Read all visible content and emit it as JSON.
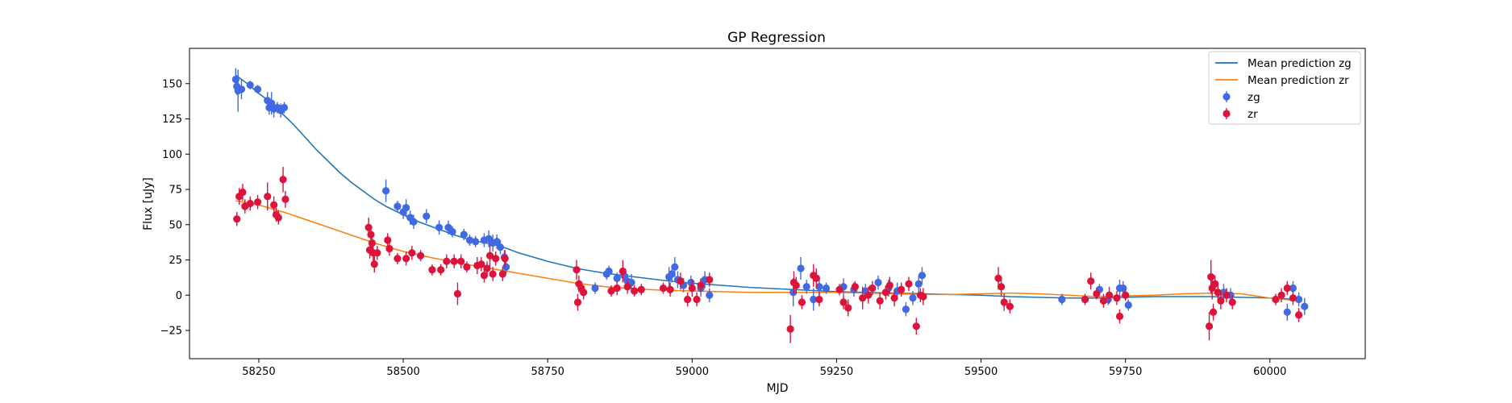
{
  "chart_data": {
    "type": "scatter",
    "title": "GP Regression",
    "xlabel": "MJD",
    "ylabel": "Flux [uJy]",
    "xlim": [
      58130,
      60165
    ],
    "ylim": [
      -45,
      175
    ],
    "xticks": [
      58250,
      58500,
      58750,
      59000,
      59250,
      59500,
      59750,
      60000
    ],
    "yticks": [
      -25,
      0,
      25,
      50,
      75,
      100,
      125,
      150
    ],
    "grid": false,
    "legend_position": "upper right",
    "legend": [
      "Mean prediction zg",
      "Mean prediction zr",
      "zg",
      "zr"
    ],
    "colors": {
      "zg_line": "#1f77b4",
      "zr_line": "#ff7f0e",
      "zg_points": "#4169e1",
      "zr_points": "#dc143c"
    },
    "lines": [
      {
        "name": "Mean prediction zg",
        "band": "zg",
        "x": [
          58210,
          58230,
          58250,
          58270,
          58290,
          58310,
          58330,
          58350,
          58370,
          58390,
          58410,
          58430,
          58450,
          58470,
          58490,
          58510,
          58530,
          58550,
          58570,
          58590,
          58610,
          58630,
          58650,
          58670,
          58700,
          58750,
          58800,
          58850,
          58900,
          58950,
          59000,
          59050,
          59100,
          59150,
          59200,
          59250,
          59300,
          59350,
          59400,
          59450,
          59500,
          59550,
          59600,
          59650,
          59700,
          59750,
          59800,
          59850,
          59900,
          59950,
          60000,
          60050
        ],
        "y": [
          156,
          150,
          143,
          137,
          129,
          121,
          112,
          103,
          95,
          87,
          80,
          74,
          68,
          63,
          59,
          55,
          51.5,
          48.5,
          45.5,
          42.5,
          40,
          38,
          36.5,
          34.5,
          30,
          24,
          19,
          15.5,
          13,
          10.5,
          8.5,
          7,
          5.5,
          4.5,
          3.5,
          2.5,
          2,
          1.5,
          1,
          0.5,
          0,
          -1,
          -1.5,
          -2,
          -2,
          -1.5,
          -1,
          -1,
          -1,
          -1.5,
          -2,
          -3
        ]
      },
      {
        "name": "Mean prediction zr",
        "band": "zr",
        "x": [
          58210,
          58250,
          58300,
          58350,
          58400,
          58450,
          58500,
          58550,
          58600,
          58650,
          58700,
          58750,
          58800,
          58850,
          58900,
          58950,
          59000,
          59050,
          59100,
          59150,
          59200,
          59250,
          59300,
          59350,
          59400,
          59450,
          59500,
          59550,
          59600,
          59650,
          59700,
          59750,
          59800,
          59850,
          59900,
          59950,
          60000,
          60050
        ],
        "y": [
          67,
          64,
          58,
          51,
          44,
          37,
          31,
          26.5,
          22.5,
          19,
          15.5,
          12,
          8.5,
          6,
          4.5,
          3.5,
          3,
          2.5,
          2,
          2,
          2,
          2,
          1.5,
          1,
          0.5,
          0.5,
          1,
          1.5,
          1,
          0,
          -1,
          -0.5,
          0,
          1,
          1.5,
          1,
          -2,
          -4
        ]
      }
    ],
    "series": [
      {
        "name": "zg",
        "points": [
          [
            58210,
            153,
            8
          ],
          [
            58212,
            148,
            6
          ],
          [
            58214,
            145,
            15
          ],
          [
            58220,
            146,
            7
          ],
          [
            58235,
            149,
            3
          ],
          [
            58248,
            146,
            3
          ],
          [
            58265,
            138,
            6
          ],
          [
            58268,
            133,
            5
          ],
          [
            58272,
            136,
            8
          ],
          [
            58276,
            132,
            6
          ],
          [
            58282,
            133,
            4
          ],
          [
            58288,
            131,
            5
          ],
          [
            58294,
            133,
            4
          ],
          [
            58470,
            74,
            8
          ],
          [
            58490,
            63,
            4
          ],
          [
            58500,
            59,
            5
          ],
          [
            58505,
            62,
            6
          ],
          [
            58512,
            55,
            5
          ],
          [
            58518,
            52,
            5
          ],
          [
            58540,
            56,
            5
          ],
          [
            58562,
            48,
            5
          ],
          [
            58578,
            48,
            5
          ],
          [
            58585,
            45,
            4
          ],
          [
            58605,
            43,
            4
          ],
          [
            58615,
            39,
            4
          ],
          [
            58625,
            38,
            4
          ],
          [
            58640,
            39,
            5
          ],
          [
            58648,
            40,
            6
          ],
          [
            58655,
            37,
            6
          ],
          [
            58662,
            38,
            5
          ],
          [
            58668,
            34,
            5
          ],
          [
            58675,
            27,
            5
          ],
          [
            58678,
            20,
            5
          ],
          [
            58832,
            5,
            4
          ],
          [
            58852,
            15,
            4
          ],
          [
            58856,
            17,
            4
          ],
          [
            58870,
            12,
            4
          ],
          [
            58882,
            14,
            4
          ],
          [
            58888,
            10,
            5
          ],
          [
            58895,
            9,
            6
          ],
          [
            58960,
            13,
            7
          ],
          [
            58965,
            15,
            6
          ],
          [
            58970,
            20,
            7
          ],
          [
            58975,
            11,
            6
          ],
          [
            58985,
            7,
            5
          ],
          [
            58998,
            9,
            5
          ],
          [
            59015,
            5,
            6
          ],
          [
            59022,
            11,
            6
          ],
          [
            59030,
            0,
            5
          ],
          [
            59175,
            2,
            10
          ],
          [
            59188,
            19,
            8
          ],
          [
            59198,
            6,
            5
          ],
          [
            59210,
            -3,
            8
          ],
          [
            59220,
            6,
            6
          ],
          [
            59232,
            5,
            4
          ],
          [
            59262,
            6,
            6
          ],
          [
            59280,
            4,
            5
          ],
          [
            59300,
            3,
            5
          ],
          [
            59322,
            9,
            5
          ],
          [
            59340,
            5,
            6
          ],
          [
            59355,
            3,
            6
          ],
          [
            59370,
            -10,
            5
          ],
          [
            59382,
            -2,
            5
          ],
          [
            59392,
            8,
            6
          ],
          [
            59398,
            14,
            6
          ],
          [
            59640,
            -3,
            4
          ],
          [
            59705,
            4,
            4
          ],
          [
            59720,
            -3,
            4
          ],
          [
            59740,
            5,
            6
          ],
          [
            59746,
            5,
            5
          ],
          [
            59755,
            -7,
            4
          ],
          [
            59920,
            2,
            6
          ],
          [
            59932,
            0,
            5
          ],
          [
            60030,
            -12,
            6
          ],
          [
            60040,
            5,
            5
          ],
          [
            60050,
            -3,
            5
          ],
          [
            60060,
            -8,
            6
          ]
        ]
      },
      {
        "name": "zr",
        "points": [
          [
            58212,
            54,
            5
          ],
          [
            58216,
            70,
            6
          ],
          [
            58222,
            73,
            6
          ],
          [
            58226,
            63,
            5
          ],
          [
            58235,
            65,
            5
          ],
          [
            58248,
            66,
            5
          ],
          [
            58265,
            70,
            10
          ],
          [
            58276,
            64,
            6
          ],
          [
            58280,
            57,
            5
          ],
          [
            58284,
            55,
            5
          ],
          [
            58292,
            82,
            9
          ],
          [
            58296,
            68,
            6
          ],
          [
            58440,
            48,
            7
          ],
          [
            58442,
            32,
            6
          ],
          [
            58444,
            43,
            6
          ],
          [
            58446,
            37,
            6
          ],
          [
            58448,
            30,
            7
          ],
          [
            58450,
            22,
            6
          ],
          [
            58455,
            30,
            5
          ],
          [
            58473,
            39,
            5
          ],
          [
            58476,
            33,
            5
          ],
          [
            58490,
            26,
            4
          ],
          [
            58505,
            26,
            5
          ],
          [
            58515,
            30,
            5
          ],
          [
            58530,
            28,
            4
          ],
          [
            58550,
            18,
            4
          ],
          [
            58565,
            18,
            4
          ],
          [
            58575,
            24,
            5
          ],
          [
            58588,
            24,
            5
          ],
          [
            58594,
            1,
            8
          ],
          [
            58600,
            24,
            5
          ],
          [
            58610,
            20,
            4
          ],
          [
            58628,
            21,
            6
          ],
          [
            58635,
            22,
            5
          ],
          [
            58640,
            14,
            5
          ],
          [
            58645,
            19,
            5
          ],
          [
            58650,
            28,
            8
          ],
          [
            58655,
            15,
            5
          ],
          [
            58660,
            26,
            5
          ],
          [
            58672,
            15,
            5
          ],
          [
            58676,
            26,
            6
          ],
          [
            58800,
            18,
            7
          ],
          [
            58802,
            -5,
            6
          ],
          [
            58804,
            8,
            6
          ],
          [
            58808,
            5,
            5
          ],
          [
            58812,
            2,
            5
          ],
          [
            58860,
            3,
            4
          ],
          [
            58870,
            5,
            5
          ],
          [
            58880,
            17,
            8
          ],
          [
            58888,
            6,
            5
          ],
          [
            58900,
            3,
            4
          ],
          [
            58912,
            4,
            4
          ],
          [
            58950,
            5,
            4
          ],
          [
            58962,
            4,
            5
          ],
          [
            58980,
            10,
            6
          ],
          [
            58992,
            -3,
            5
          ],
          [
            59000,
            5,
            6
          ],
          [
            59008,
            -3,
            5
          ],
          [
            59015,
            7,
            5
          ],
          [
            59030,
            11,
            5
          ],
          [
            59170,
            -24,
            10
          ],
          [
            59176,
            9,
            8
          ],
          [
            59180,
            7,
            6
          ],
          [
            59190,
            -5,
            5
          ],
          [
            59210,
            14,
            8
          ],
          [
            59215,
            12,
            7
          ],
          [
            59220,
            -3,
            5
          ],
          [
            59255,
            4,
            4
          ],
          [
            59262,
            -5,
            5
          ],
          [
            59270,
            -9,
            6
          ],
          [
            59282,
            6,
            4
          ],
          [
            59295,
            -2,
            8
          ],
          [
            59305,
            0,
            6
          ],
          [
            59312,
            5,
            5
          ],
          [
            59325,
            -4,
            6
          ],
          [
            59335,
            2,
            5
          ],
          [
            59342,
            7,
            6
          ],
          [
            59350,
            -2,
            6
          ],
          [
            59362,
            4,
            5
          ],
          [
            59375,
            8,
            5
          ],
          [
            59388,
            -22,
            6
          ],
          [
            59395,
            0,
            5
          ],
          [
            59400,
            -1,
            6
          ],
          [
            59530,
            12,
            8
          ],
          [
            59535,
            6,
            7
          ],
          [
            59540,
            -5,
            6
          ],
          [
            59550,
            -8,
            5
          ],
          [
            59680,
            -3,
            4
          ],
          [
            59690,
            10,
            6
          ],
          [
            59700,
            1,
            4
          ],
          [
            59712,
            -4,
            5
          ],
          [
            59722,
            0,
            6
          ],
          [
            59735,
            -2,
            5
          ],
          [
            59740,
            -15,
            5
          ],
          [
            59750,
            0,
            4
          ],
          [
            59895,
            -22,
            10
          ],
          [
            59898,
            13,
            12
          ],
          [
            59900,
            5,
            8
          ],
          [
            59902,
            -12,
            6
          ],
          [
            59905,
            8,
            6
          ],
          [
            59910,
            2,
            7
          ],
          [
            59915,
            -4,
            6
          ],
          [
            59925,
            0,
            5
          ],
          [
            59935,
            -5,
            5
          ],
          [
            60010,
            -3,
            4
          ],
          [
            60020,
            0,
            5
          ],
          [
            60030,
            5,
            5
          ],
          [
            60040,
            -2,
            5
          ],
          [
            60050,
            -14,
            5
          ]
        ]
      }
    ]
  }
}
